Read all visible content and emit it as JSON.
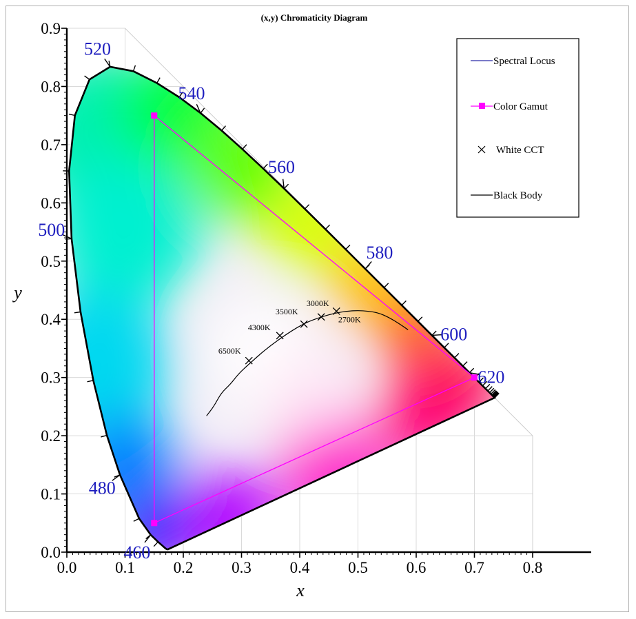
{
  "chart_data": {
    "type": "scatter",
    "title": "(x,y) Chromaticity Diagram",
    "xlabel": "x",
    "ylabel": "y",
    "xlim": [
      0.0,
      0.8
    ],
    "ylim": [
      0.0,
      0.9
    ],
    "grid": true,
    "legend_position": "top-right",
    "x_ticks": [
      "0.0",
      "0.1",
      "0.2",
      "0.3",
      "0.4",
      "0.5",
      "0.6",
      "0.7",
      "0.8"
    ],
    "y_ticks": [
      "0.0",
      "0.1",
      "0.2",
      "0.3",
      "0.4",
      "0.5",
      "0.6",
      "0.7",
      "0.8",
      "0.9"
    ],
    "legend": [
      "Spectral Locus",
      "Color Gamut",
      "White CCT",
      "Black Body"
    ],
    "spectral_locus": {
      "name": "Spectral Locus",
      "color": "#000000",
      "points": [
        [
          0.1741,
          0.005
        ],
        [
          0.1738,
          0.0049
        ],
        [
          0.1736,
          0.0049
        ],
        [
          0.1733,
          0.0048
        ],
        [
          0.1726,
          0.0048
        ],
        [
          0.1714,
          0.0051
        ],
        [
          0.1689,
          0.0069
        ],
        [
          0.1644,
          0.0109
        ],
        [
          0.1566,
          0.0177
        ],
        [
          0.144,
          0.0297
        ],
        [
          0.1241,
          0.0578
        ],
        [
          0.0913,
          0.1327
        ],
        [
          0.0687,
          0.2007
        ],
        [
          0.0454,
          0.295
        ],
        [
          0.0235,
          0.4127
        ],
        [
          0.0082,
          0.5384
        ],
        [
          0.0039,
          0.6548
        ],
        [
          0.0139,
          0.7502
        ],
        [
          0.0389,
          0.812
        ],
        [
          0.0743,
          0.8338
        ],
        [
          0.1142,
          0.8262
        ],
        [
          0.1547,
          0.8059
        ],
        [
          0.1929,
          0.7816
        ],
        [
          0.2296,
          0.7543
        ],
        [
          0.2658,
          0.7243
        ],
        [
          0.3016,
          0.6923
        ],
        [
          0.3373,
          0.6589
        ],
        [
          0.3731,
          0.6245
        ],
        [
          0.4087,
          0.5896
        ],
        [
          0.4441,
          0.5547
        ],
        [
          0.4788,
          0.5202
        ],
        [
          0.5125,
          0.4866
        ],
        [
          0.5448,
          0.4544
        ],
        [
          0.5752,
          0.4242
        ],
        [
          0.6029,
          0.3965
        ],
        [
          0.627,
          0.3725
        ],
        [
          0.6482,
          0.3514
        ],
        [
          0.6658,
          0.334
        ],
        [
          0.6801,
          0.3197
        ],
        [
          0.6915,
          0.3083
        ],
        [
          0.7006,
          0.2993
        ],
        [
          0.7079,
          0.292
        ],
        [
          0.714,
          0.2859
        ],
        [
          0.719,
          0.2809
        ],
        [
          0.723,
          0.277
        ],
        [
          0.726,
          0.274
        ],
        [
          0.7283,
          0.2717
        ],
        [
          0.73,
          0.27
        ],
        [
          0.7311,
          0.2689
        ],
        [
          0.732,
          0.268
        ],
        [
          0.7327,
          0.2673
        ],
        [
          0.7334,
          0.2666
        ],
        [
          0.734,
          0.266
        ],
        [
          0.7344,
          0.2656
        ],
        [
          0.7346,
          0.2654
        ],
        [
          0.7347,
          0.2653
        ]
      ]
    },
    "wavelength_labels": [
      {
        "label": "460",
        "x": 0.144,
        "y": 0.0297
      },
      {
        "label": "480",
        "x": 0.0913,
        "y": 0.1327
      },
      {
        "label": "500",
        "x": 0.0082,
        "y": 0.5384
      },
      {
        "label": "520",
        "x": 0.0743,
        "y": 0.8338
      },
      {
        "label": "540",
        "x": 0.2296,
        "y": 0.7543
      },
      {
        "label": "560",
        "x": 0.3731,
        "y": 0.6245
      },
      {
        "label": "580",
        "x": 0.5125,
        "y": 0.4866
      },
      {
        "label": "600",
        "x": 0.627,
        "y": 0.3725
      },
      {
        "label": "620",
        "x": 0.6915,
        "y": 0.3083
      }
    ],
    "color_gamut": {
      "name": "Color Gamut",
      "color": "#ff00ff",
      "points": [
        [
          0.15,
          0.75
        ],
        [
          0.7,
          0.3
        ],
        [
          0.15,
          0.05
        ]
      ]
    },
    "white_cct": {
      "name": "White CCT",
      "points": [
        {
          "label": "6500K",
          "x": 0.3127,
          "y": 0.329
        },
        {
          "label": "4300K",
          "x": 0.3659,
          "y": 0.372
        },
        {
          "label": "3500K",
          "x": 0.4073,
          "y": 0.3917
        },
        {
          "label": "3000K",
          "x": 0.4369,
          "y": 0.4041
        },
        {
          "label": "2700K",
          "x": 0.463,
          "y": 0.414
        }
      ]
    },
    "black_body": {
      "name": "Black Body",
      "color": "#000000",
      "points": [
        [
          0.2399,
          0.2341
        ],
        [
          0.2524,
          0.2502
        ],
        [
          0.2653,
          0.2738
        ],
        [
          0.2808,
          0.2883
        ],
        [
          0.2952,
          0.3068
        ],
        [
          0.3135,
          0.3237
        ],
        [
          0.3451,
          0.3516
        ],
        [
          0.3805,
          0.3768
        ],
        [
          0.4099,
          0.3943
        ],
        [
          0.4369,
          0.4041
        ],
        [
          0.46,
          0.4106
        ],
        [
          0.482,
          0.4141
        ],
        [
          0.5006,
          0.4151
        ],
        [
          0.5169,
          0.414
        ],
        [
          0.5348,
          0.4113
        ],
        [
          0.5536,
          0.4031
        ],
        [
          0.5736,
          0.3907
        ],
        [
          0.586,
          0.3819
        ]
      ]
    }
  }
}
